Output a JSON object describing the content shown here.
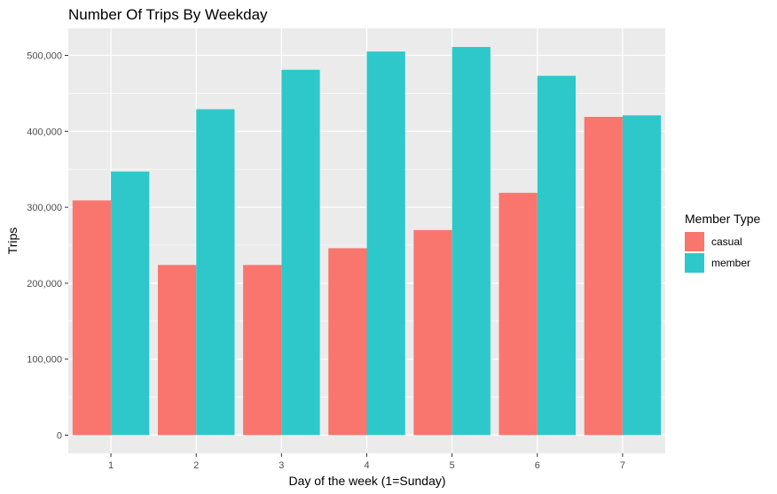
{
  "chart_data": {
    "type": "bar",
    "title": "Number Of Trips By Weekday",
    "xlabel": "Day of the week (1=Sunday)",
    "ylabel": "Trips",
    "categories": [
      "1",
      "2",
      "3",
      "4",
      "5",
      "6",
      "7"
    ],
    "series": [
      {
        "name": "casual",
        "color": "#F8766D",
        "values": [
          309000,
          224000,
          224000,
          246000,
          270000,
          319000,
          419000
        ]
      },
      {
        "name": "member",
        "color": "#2EC8CB",
        "values": [
          347000,
          429000,
          481000,
          505000,
          511000,
          473000,
          421000
        ]
      }
    ],
    "ylim": [
      0,
      535000
    ],
    "yticks": [
      0,
      100000,
      200000,
      300000,
      400000,
      500000
    ],
    "ytick_labels": [
      "0",
      "100,000",
      "200,000",
      "300,000",
      "400,000",
      "500,000"
    ],
    "legend": {
      "title": "Member Type",
      "position": "right"
    },
    "grid": true,
    "panel_background": "#EBEBEB"
  }
}
